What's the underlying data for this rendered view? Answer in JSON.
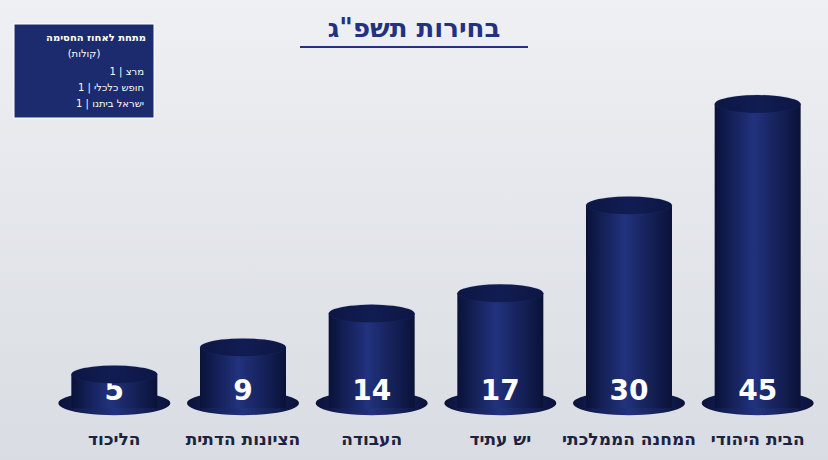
{
  "chart_data": {
    "type": "bar",
    "title": "בחירות תשפ\"ג",
    "categories": [
      "הליכוד",
      "הציונות הדתית",
      "העבודה",
      "יש עתיד",
      "המחנה הממלכתי",
      "הבית היהודי"
    ],
    "values": [
      5,
      9,
      14,
      17,
      30,
      45
    ],
    "color": "#22327e",
    "ylim": [
      0,
      50
    ],
    "grid": false,
    "tick_labels": "x",
    "data_labels": true,
    "annotations": {
      "title": "מתחת לאחוז החסימה",
      "subtitle": "(קולות)",
      "items": [
        "1 | מרצ",
        "1 | חופש כלכלי",
        "1 | ישראל ביתנו"
      ]
    }
  }
}
